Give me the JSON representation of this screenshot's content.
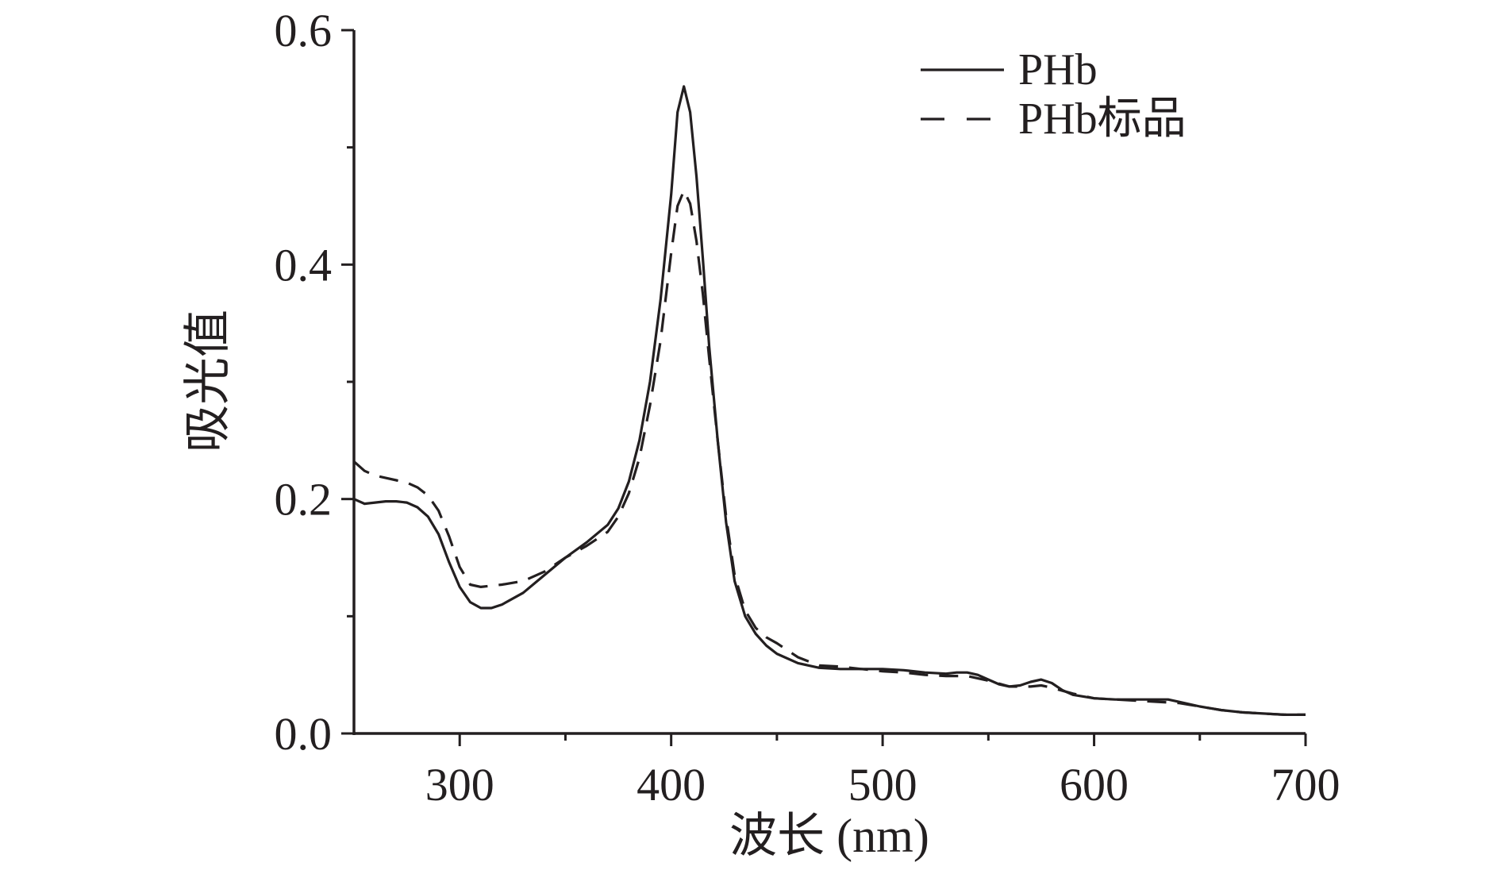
{
  "chart_data": {
    "type": "line",
    "xlabel": "波长 (nm)",
    "ylabel": "吸光值",
    "xlim": [
      250,
      700
    ],
    "ylim": [
      0,
      0.6
    ],
    "x_ticks": [
      300,
      400,
      500,
      600,
      700
    ],
    "x_tick_labels": [
      "300",
      "400",
      "500",
      "600",
      "700"
    ],
    "x_minor_ticks": [
      350,
      450,
      550,
      650
    ],
    "y_ticks": [
      0,
      0.2,
      0.4,
      0.6
    ],
    "y_tick_labels": [
      "0.0",
      "0.2",
      "0.4",
      "0.6"
    ],
    "y_minor_ticks": [
      0.1,
      0.3,
      0.5
    ],
    "grid": false,
    "legend_position": "top-right",
    "series": [
      {
        "name": "PHb",
        "style": "solid",
        "color": "#231f20",
        "points": [
          [
            250,
            0.2
          ],
          [
            255,
            0.196
          ],
          [
            260,
            0.197
          ],
          [
            265,
            0.198
          ],
          [
            270,
            0.198
          ],
          [
            275,
            0.197
          ],
          [
            280,
            0.193
          ],
          [
            285,
            0.185
          ],
          [
            290,
            0.17
          ],
          [
            295,
            0.146
          ],
          [
            300,
            0.125
          ],
          [
            305,
            0.112
          ],
          [
            310,
            0.107
          ],
          [
            315,
            0.107
          ],
          [
            320,
            0.11
          ],
          [
            330,
            0.12
          ],
          [
            340,
            0.135
          ],
          [
            350,
            0.15
          ],
          [
            360,
            0.163
          ],
          [
            370,
            0.178
          ],
          [
            375,
            0.192
          ],
          [
            380,
            0.215
          ],
          [
            385,
            0.25
          ],
          [
            390,
            0.3
          ],
          [
            395,
            0.37
          ],
          [
            400,
            0.46
          ],
          [
            403,
            0.53
          ],
          [
            406,
            0.552
          ],
          [
            409,
            0.53
          ],
          [
            412,
            0.475
          ],
          [
            415,
            0.405
          ],
          [
            418,
            0.33
          ],
          [
            422,
            0.25
          ],
          [
            426,
            0.18
          ],
          [
            430,
            0.13
          ],
          [
            435,
            0.1
          ],
          [
            440,
            0.085
          ],
          [
            445,
            0.075
          ],
          [
            450,
            0.068
          ],
          [
            460,
            0.06
          ],
          [
            470,
            0.056
          ],
          [
            480,
            0.055
          ],
          [
            490,
            0.055
          ],
          [
            500,
            0.055
          ],
          [
            510,
            0.054
          ],
          [
            520,
            0.052
          ],
          [
            530,
            0.051
          ],
          [
            535,
            0.052
          ],
          [
            540,
            0.052
          ],
          [
            545,
            0.05
          ],
          [
            550,
            0.046
          ],
          [
            555,
            0.042
          ],
          [
            560,
            0.04
          ],
          [
            565,
            0.041
          ],
          [
            570,
            0.044
          ],
          [
            575,
            0.046
          ],
          [
            580,
            0.043
          ],
          [
            585,
            0.037
          ],
          [
            590,
            0.033
          ],
          [
            600,
            0.03
          ],
          [
            610,
            0.029
          ],
          [
            620,
            0.029
          ],
          [
            630,
            0.029
          ],
          [
            635,
            0.029
          ],
          [
            640,
            0.027
          ],
          [
            650,
            0.023
          ],
          [
            660,
            0.02
          ],
          [
            670,
            0.018
          ],
          [
            680,
            0.017
          ],
          [
            690,
            0.016
          ],
          [
            700,
            0.016
          ]
        ]
      },
      {
        "name": "PHb标品",
        "style": "dashed",
        "color": "#231f20",
        "points": [
          [
            250,
            0.232
          ],
          [
            255,
            0.224
          ],
          [
            260,
            0.22
          ],
          [
            265,
            0.218
          ],
          [
            270,
            0.216
          ],
          [
            275,
            0.214
          ],
          [
            280,
            0.21
          ],
          [
            285,
            0.203
          ],
          [
            290,
            0.19
          ],
          [
            295,
            0.168
          ],
          [
            300,
            0.142
          ],
          [
            305,
            0.127
          ],
          [
            310,
            0.125
          ],
          [
            315,
            0.126
          ],
          [
            320,
            0.127
          ],
          [
            330,
            0.13
          ],
          [
            340,
            0.138
          ],
          [
            350,
            0.15
          ],
          [
            360,
            0.16
          ],
          [
            370,
            0.172
          ],
          [
            375,
            0.185
          ],
          [
            380,
            0.205
          ],
          [
            385,
            0.235
          ],
          [
            390,
            0.28
          ],
          [
            395,
            0.335
          ],
          [
            400,
            0.41
          ],
          [
            403,
            0.45
          ],
          [
            406,
            0.463
          ],
          [
            409,
            0.452
          ],
          [
            412,
            0.42
          ],
          [
            415,
            0.375
          ],
          [
            418,
            0.32
          ],
          [
            422,
            0.25
          ],
          [
            426,
            0.185
          ],
          [
            430,
            0.135
          ],
          [
            435,
            0.105
          ],
          [
            440,
            0.09
          ],
          [
            445,
            0.082
          ],
          [
            450,
            0.077
          ],
          [
            460,
            0.065
          ],
          [
            470,
            0.058
          ],
          [
            480,
            0.057
          ],
          [
            490,
            0.055
          ],
          [
            500,
            0.053
          ],
          [
            510,
            0.052
          ],
          [
            520,
            0.05
          ],
          [
            530,
            0.049
          ],
          [
            540,
            0.049
          ],
          [
            550,
            0.045
          ],
          [
            560,
            0.04
          ],
          [
            570,
            0.04
          ],
          [
            575,
            0.041
          ],
          [
            580,
            0.039
          ],
          [
            590,
            0.034
          ],
          [
            600,
            0.03
          ],
          [
            610,
            0.029
          ],
          [
            620,
            0.028
          ],
          [
            630,
            0.027
          ],
          [
            640,
            0.026
          ],
          [
            650,
            0.023
          ],
          [
            660,
            0.02
          ],
          [
            670,
            0.018
          ],
          [
            680,
            0.017
          ],
          [
            690,
            0.016
          ],
          [
            700,
            0.016
          ]
        ]
      }
    ]
  }
}
